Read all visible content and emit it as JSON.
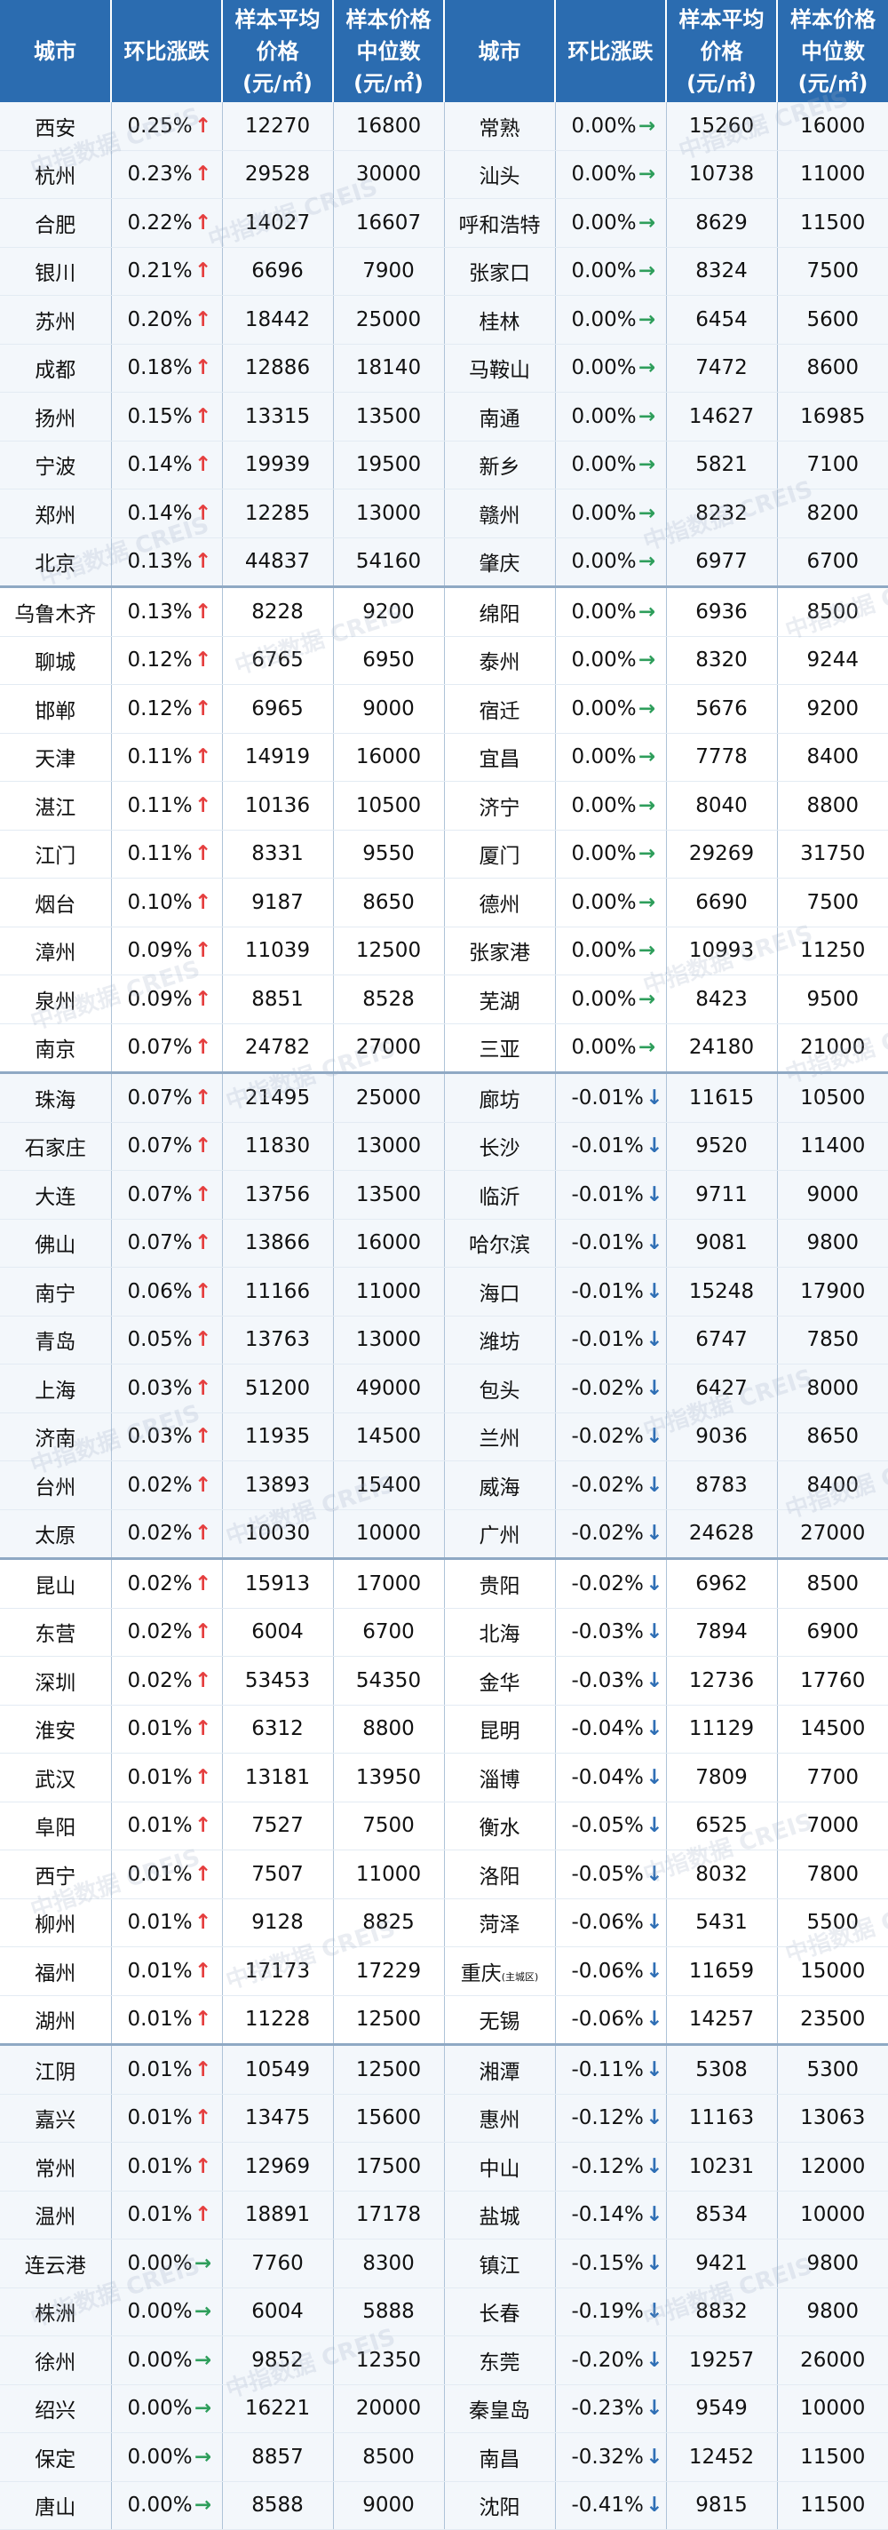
{
  "header": {
    "city": "城市",
    "change": "环比涨跌",
    "avg_l1": "样本平均",
    "avg_l2": "价格",
    "avg_l3": "(元/㎡)",
    "median_l1": "样本价格",
    "median_l2": "中位数",
    "median_l3": "(元/㎡)"
  },
  "watermark": "中指数据 CREIS",
  "colors": {
    "header_bg": "#2b6cb0",
    "up_arrow": "#e53e3e",
    "flat_arrow": "#2e9e5b",
    "down_arrow": "#2f6fb5"
  },
  "rows": [
    {
      "l": {
        "city": "西安",
        "change": "0.25%",
        "dir": "up",
        "avg": "12270",
        "median": "16800"
      },
      "r": {
        "city": "常熟",
        "change": "0.00%",
        "dir": "flat",
        "avg": "15260",
        "median": "16000"
      }
    },
    {
      "l": {
        "city": "杭州",
        "change": "0.23%",
        "dir": "up",
        "avg": "29528",
        "median": "30000"
      },
      "r": {
        "city": "汕头",
        "change": "0.00%",
        "dir": "flat",
        "avg": "10738",
        "median": "11000"
      }
    },
    {
      "l": {
        "city": "合肥",
        "change": "0.22%",
        "dir": "up",
        "avg": "14027",
        "median": "16607"
      },
      "r": {
        "city": "呼和浩特",
        "change": "0.00%",
        "dir": "flat",
        "avg": "8629",
        "median": "11500"
      }
    },
    {
      "l": {
        "city": "银川",
        "change": "0.21%",
        "dir": "up",
        "avg": "6696",
        "median": "7900"
      },
      "r": {
        "city": "张家口",
        "change": "0.00%",
        "dir": "flat",
        "avg": "8324",
        "median": "7500"
      }
    },
    {
      "l": {
        "city": "苏州",
        "change": "0.20%",
        "dir": "up",
        "avg": "18442",
        "median": "25000"
      },
      "r": {
        "city": "桂林",
        "change": "0.00%",
        "dir": "flat",
        "avg": "6454",
        "median": "5600"
      }
    },
    {
      "l": {
        "city": "成都",
        "change": "0.18%",
        "dir": "up",
        "avg": "12886",
        "median": "18140"
      },
      "r": {
        "city": "马鞍山",
        "change": "0.00%",
        "dir": "flat",
        "avg": "7472",
        "median": "8600"
      }
    },
    {
      "l": {
        "city": "扬州",
        "change": "0.15%",
        "dir": "up",
        "avg": "13315",
        "median": "13500"
      },
      "r": {
        "city": "南通",
        "change": "0.00%",
        "dir": "flat",
        "avg": "14627",
        "median": "16985"
      }
    },
    {
      "l": {
        "city": "宁波",
        "change": "0.14%",
        "dir": "up",
        "avg": "19939",
        "median": "19500"
      },
      "r": {
        "city": "新乡",
        "change": "0.00%",
        "dir": "flat",
        "avg": "5821",
        "median": "7100"
      }
    },
    {
      "l": {
        "city": "郑州",
        "change": "0.14%",
        "dir": "up",
        "avg": "12285",
        "median": "13000"
      },
      "r": {
        "city": "赣州",
        "change": "0.00%",
        "dir": "flat",
        "avg": "8232",
        "median": "8200"
      }
    },
    {
      "l": {
        "city": "北京",
        "change": "0.13%",
        "dir": "up",
        "avg": "44837",
        "median": "54160"
      },
      "r": {
        "city": "肇庆",
        "change": "0.00%",
        "dir": "flat",
        "avg": "6977",
        "median": "6700"
      }
    },
    {
      "l": {
        "city": "乌鲁木齐",
        "change": "0.13%",
        "dir": "up",
        "avg": "8228",
        "median": "9200"
      },
      "r": {
        "city": "绵阳",
        "change": "0.00%",
        "dir": "flat",
        "avg": "6936",
        "median": "8500"
      }
    },
    {
      "l": {
        "city": "聊城",
        "change": "0.12%",
        "dir": "up",
        "avg": "6765",
        "median": "6950"
      },
      "r": {
        "city": "泰州",
        "change": "0.00%",
        "dir": "flat",
        "avg": "8320",
        "median": "9244"
      }
    },
    {
      "l": {
        "city": "邯郸",
        "change": "0.12%",
        "dir": "up",
        "avg": "6965",
        "median": "9000"
      },
      "r": {
        "city": "宿迁",
        "change": "0.00%",
        "dir": "flat",
        "avg": "5676",
        "median": "9200"
      }
    },
    {
      "l": {
        "city": "天津",
        "change": "0.11%",
        "dir": "up",
        "avg": "14919",
        "median": "16000"
      },
      "r": {
        "city": "宜昌",
        "change": "0.00%",
        "dir": "flat",
        "avg": "7778",
        "median": "8400"
      }
    },
    {
      "l": {
        "city": "湛江",
        "change": "0.11%",
        "dir": "up",
        "avg": "10136",
        "median": "10500"
      },
      "r": {
        "city": "济宁",
        "change": "0.00%",
        "dir": "flat",
        "avg": "8040",
        "median": "8800"
      }
    },
    {
      "l": {
        "city": "江门",
        "change": "0.11%",
        "dir": "up",
        "avg": "8331",
        "median": "9550"
      },
      "r": {
        "city": "厦门",
        "change": "0.00%",
        "dir": "flat",
        "avg": "29269",
        "median": "31750"
      }
    },
    {
      "l": {
        "city": "烟台",
        "change": "0.10%",
        "dir": "up",
        "avg": "9187",
        "median": "8650"
      },
      "r": {
        "city": "德州",
        "change": "0.00%",
        "dir": "flat",
        "avg": "6690",
        "median": "7500"
      }
    },
    {
      "l": {
        "city": "漳州",
        "change": "0.09%",
        "dir": "up",
        "avg": "11039",
        "median": "12500"
      },
      "r": {
        "city": "张家港",
        "change": "0.00%",
        "dir": "flat",
        "avg": "10993",
        "median": "11250"
      }
    },
    {
      "l": {
        "city": "泉州",
        "change": "0.09%",
        "dir": "up",
        "avg": "8851",
        "median": "8528"
      },
      "r": {
        "city": "芜湖",
        "change": "0.00%",
        "dir": "flat",
        "avg": "8423",
        "median": "9500"
      }
    },
    {
      "l": {
        "city": "南京",
        "change": "0.07%",
        "dir": "up",
        "avg": "24782",
        "median": "27000"
      },
      "r": {
        "city": "三亚",
        "change": "0.00%",
        "dir": "flat",
        "avg": "24180",
        "median": "21000"
      }
    },
    {
      "l": {
        "city": "珠海",
        "change": "0.07%",
        "dir": "up",
        "avg": "21495",
        "median": "25000"
      },
      "r": {
        "city": "廊坊",
        "change": "-0.01%",
        "dir": "down",
        "avg": "11615",
        "median": "10500"
      }
    },
    {
      "l": {
        "city": "石家庄",
        "change": "0.07%",
        "dir": "up",
        "avg": "11830",
        "median": "13000"
      },
      "r": {
        "city": "长沙",
        "change": "-0.01%",
        "dir": "down",
        "avg": "9520",
        "median": "11400"
      }
    },
    {
      "l": {
        "city": "大连",
        "change": "0.07%",
        "dir": "up",
        "avg": "13756",
        "median": "13500"
      },
      "r": {
        "city": "临沂",
        "change": "-0.01%",
        "dir": "down",
        "avg": "9711",
        "median": "9000"
      }
    },
    {
      "l": {
        "city": "佛山",
        "change": "0.07%",
        "dir": "up",
        "avg": "13866",
        "median": "16000"
      },
      "r": {
        "city": "哈尔滨",
        "change": "-0.01%",
        "dir": "down",
        "avg": "9081",
        "median": "9800"
      }
    },
    {
      "l": {
        "city": "南宁",
        "change": "0.06%",
        "dir": "up",
        "avg": "11166",
        "median": "11000"
      },
      "r": {
        "city": "海口",
        "change": "-0.01%",
        "dir": "down",
        "avg": "15248",
        "median": "17900"
      }
    },
    {
      "l": {
        "city": "青岛",
        "change": "0.05%",
        "dir": "up",
        "avg": "13763",
        "median": "13000"
      },
      "r": {
        "city": "潍坊",
        "change": "-0.01%",
        "dir": "down",
        "avg": "6747",
        "median": "7850"
      }
    },
    {
      "l": {
        "city": "上海",
        "change": "0.03%",
        "dir": "up",
        "avg": "51200",
        "median": "49000"
      },
      "r": {
        "city": "包头",
        "change": "-0.02%",
        "dir": "down",
        "avg": "6427",
        "median": "8000"
      }
    },
    {
      "l": {
        "city": "济南",
        "change": "0.03%",
        "dir": "up",
        "avg": "11935",
        "median": "14500"
      },
      "r": {
        "city": "兰州",
        "change": "-0.02%",
        "dir": "down",
        "avg": "9036",
        "median": "8650"
      }
    },
    {
      "l": {
        "city": "台州",
        "change": "0.02%",
        "dir": "up",
        "avg": "13893",
        "median": "15400"
      },
      "r": {
        "city": "威海",
        "change": "-0.02%",
        "dir": "down",
        "avg": "8783",
        "median": "8400"
      }
    },
    {
      "l": {
        "city": "太原",
        "change": "0.02%",
        "dir": "up",
        "avg": "10030",
        "median": "10000"
      },
      "r": {
        "city": "广州",
        "change": "-0.02%",
        "dir": "down",
        "avg": "24628",
        "median": "27000"
      }
    },
    {
      "l": {
        "city": "昆山",
        "change": "0.02%",
        "dir": "up",
        "avg": "15913",
        "median": "17000"
      },
      "r": {
        "city": "贵阳",
        "change": "-0.02%",
        "dir": "down",
        "avg": "6962",
        "median": "8500"
      }
    },
    {
      "l": {
        "city": "东营",
        "change": "0.02%",
        "dir": "up",
        "avg": "6004",
        "median": "6700"
      },
      "r": {
        "city": "北海",
        "change": "-0.03%",
        "dir": "down",
        "avg": "7894",
        "median": "6900"
      }
    },
    {
      "l": {
        "city": "深圳",
        "change": "0.02%",
        "dir": "up",
        "avg": "53453",
        "median": "54350"
      },
      "r": {
        "city": "金华",
        "change": "-0.03%",
        "dir": "down",
        "avg": "12736",
        "median": "17760"
      }
    },
    {
      "l": {
        "city": "淮安",
        "change": "0.01%",
        "dir": "up",
        "avg": "6312",
        "median": "8800"
      },
      "r": {
        "city": "昆明",
        "change": "-0.04%",
        "dir": "down",
        "avg": "11129",
        "median": "14500"
      }
    },
    {
      "l": {
        "city": "武汉",
        "change": "0.01%",
        "dir": "up",
        "avg": "13181",
        "median": "13950"
      },
      "r": {
        "city": "淄博",
        "change": "-0.04%",
        "dir": "down",
        "avg": "7809",
        "median": "7700"
      }
    },
    {
      "l": {
        "city": "阜阳",
        "change": "0.01%",
        "dir": "up",
        "avg": "7527",
        "median": "7500"
      },
      "r": {
        "city": "衡水",
        "change": "-0.05%",
        "dir": "down",
        "avg": "6525",
        "median": "7000"
      }
    },
    {
      "l": {
        "city": "西宁",
        "change": "0.01%",
        "dir": "up",
        "avg": "7507",
        "median": "11000"
      },
      "r": {
        "city": "洛阳",
        "change": "-0.05%",
        "dir": "down",
        "avg": "8032",
        "median": "7800"
      }
    },
    {
      "l": {
        "city": "柳州",
        "change": "0.01%",
        "dir": "up",
        "avg": "9128",
        "median": "8825"
      },
      "r": {
        "city": "菏泽",
        "change": "-0.06%",
        "dir": "down",
        "avg": "5431",
        "median": "5500"
      }
    },
    {
      "l": {
        "city": "福州",
        "change": "0.01%",
        "dir": "up",
        "avg": "17173",
        "median": "17229"
      },
      "r": {
        "city": "重庆",
        "note": "(主城区)",
        "change": "-0.06%",
        "dir": "down",
        "avg": "11659",
        "median": "15000"
      }
    },
    {
      "l": {
        "city": "湖州",
        "change": "0.01%",
        "dir": "up",
        "avg": "11228",
        "median": "12500"
      },
      "r": {
        "city": "无锡",
        "change": "-0.06%",
        "dir": "down",
        "avg": "14257",
        "median": "23500"
      }
    },
    {
      "l": {
        "city": "江阴",
        "change": "0.01%",
        "dir": "up",
        "avg": "10549",
        "median": "12500"
      },
      "r": {
        "city": "湘潭",
        "change": "-0.11%",
        "dir": "down",
        "avg": "5308",
        "median": "5300"
      }
    },
    {
      "l": {
        "city": "嘉兴",
        "change": "0.01%",
        "dir": "up",
        "avg": "13475",
        "median": "15600"
      },
      "r": {
        "city": "惠州",
        "change": "-0.12%",
        "dir": "down",
        "avg": "11163",
        "median": "13063"
      }
    },
    {
      "l": {
        "city": "常州",
        "change": "0.01%",
        "dir": "up",
        "avg": "12969",
        "median": "17500"
      },
      "r": {
        "city": "中山",
        "change": "-0.12%",
        "dir": "down",
        "avg": "10231",
        "median": "12000"
      }
    },
    {
      "l": {
        "city": "温州",
        "change": "0.01%",
        "dir": "up",
        "avg": "18891",
        "median": "17178"
      },
      "r": {
        "city": "盐城",
        "change": "-0.14%",
        "dir": "down",
        "avg": "8534",
        "median": "10000"
      }
    },
    {
      "l": {
        "city": "连云港",
        "change": "0.00%",
        "dir": "flat",
        "avg": "7760",
        "median": "8300"
      },
      "r": {
        "city": "镇江",
        "change": "-0.15%",
        "dir": "down",
        "avg": "9421",
        "median": "9800"
      }
    },
    {
      "l": {
        "city": "株洲",
        "change": "0.00%",
        "dir": "flat",
        "avg": "6004",
        "median": "5888"
      },
      "r": {
        "city": "长春",
        "change": "-0.19%",
        "dir": "down",
        "avg": "8832",
        "median": "9800"
      }
    },
    {
      "l": {
        "city": "徐州",
        "change": "0.00%",
        "dir": "flat",
        "avg": "9852",
        "median": "12350"
      },
      "r": {
        "city": "东莞",
        "change": "-0.20%",
        "dir": "down",
        "avg": "19257",
        "median": "26000"
      }
    },
    {
      "l": {
        "city": "绍兴",
        "change": "0.00%",
        "dir": "flat",
        "avg": "16221",
        "median": "20000"
      },
      "r": {
        "city": "秦皇岛",
        "change": "-0.23%",
        "dir": "down",
        "avg": "9549",
        "median": "10000"
      }
    },
    {
      "l": {
        "city": "保定",
        "change": "0.00%",
        "dir": "flat",
        "avg": "8857",
        "median": "8500"
      },
      "r": {
        "city": "南昌",
        "change": "-0.32%",
        "dir": "down",
        "avg": "12452",
        "median": "11500"
      }
    },
    {
      "l": {
        "city": "唐山",
        "change": "0.00%",
        "dir": "flat",
        "avg": "8588",
        "median": "9000"
      },
      "r": {
        "city": "沈阳",
        "change": "-0.41%",
        "dir": "down",
        "avg": "9815",
        "median": "11500"
      }
    }
  ]
}
